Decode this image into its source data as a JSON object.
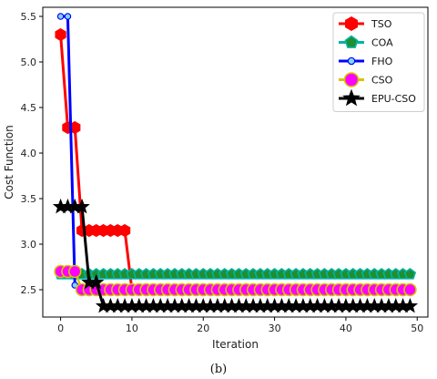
{
  "caption": "(b)",
  "chart_data": {
    "type": "line",
    "title": "",
    "xlabel": "Iteration",
    "ylabel": "Cost Function",
    "xlim": [
      -2.5,
      51.5
    ],
    "ylim": [
      2.2,
      5.6
    ],
    "xticks": [
      0,
      10,
      20,
      30,
      40,
      50
    ],
    "yticks": [
      2.5,
      3.0,
      3.5,
      4.0,
      4.5,
      5.0,
      5.5
    ],
    "grid": false,
    "legend_position": "top-right",
    "x": [
      0,
      1,
      2,
      3,
      4,
      5,
      6,
      7,
      8,
      9,
      10,
      11,
      12,
      13,
      14,
      15,
      16,
      17,
      18,
      19,
      20,
      21,
      22,
      23,
      24,
      25,
      26,
      27,
      28,
      29,
      30,
      31,
      32,
      33,
      34,
      35,
      36,
      37,
      38,
      39,
      40,
      41,
      42,
      43,
      44,
      45,
      46,
      47,
      48,
      49
    ],
    "series": [
      {
        "name": "TSO",
        "color": "#ff0000",
        "marker": "hexagon",
        "marker_color": "#ff0000",
        "marker_edge": "#ff0000",
        "values": [
          5.3,
          4.28,
          4.28,
          3.15,
          3.15,
          3.15,
          3.15,
          3.15,
          3.15,
          3.15,
          2.5,
          2.5,
          2.5,
          2.5,
          2.5,
          2.5,
          2.5,
          2.5,
          2.5,
          2.5,
          2.5,
          2.5,
          2.5,
          2.5,
          2.5,
          2.5,
          2.5,
          2.5,
          2.5,
          2.5,
          2.5,
          2.5,
          2.5,
          2.5,
          2.5,
          2.5,
          2.5,
          2.5,
          2.5,
          2.5,
          2.5,
          2.5,
          2.5,
          2.5,
          2.5,
          2.5,
          2.5,
          2.5,
          2.5,
          2.5
        ]
      },
      {
        "name": "COA",
        "color": "#00b3a4",
        "marker": "pentagon",
        "marker_color": "#1f8f2f",
        "marker_edge": "#00b3a4",
        "values": [
          2.67,
          2.67,
          2.67,
          2.67,
          2.67,
          2.67,
          2.67,
          2.67,
          2.67,
          2.67,
          2.67,
          2.67,
          2.67,
          2.67,
          2.67,
          2.67,
          2.67,
          2.67,
          2.67,
          2.67,
          2.67,
          2.67,
          2.67,
          2.67,
          2.67,
          2.67,
          2.67,
          2.67,
          2.67,
          2.67,
          2.67,
          2.67,
          2.67,
          2.67,
          2.67,
          2.67,
          2.67,
          2.67,
          2.67,
          2.67,
          2.67,
          2.67,
          2.67,
          2.67,
          2.67,
          2.67,
          2.67,
          2.67,
          2.67,
          2.67
        ]
      },
      {
        "name": "FHO",
        "color": "#0000ff",
        "marker": "circle",
        "marker_color": "#7fd6f5",
        "marker_edge": "#0000ff",
        "values": [
          5.5,
          5.5,
          2.55,
          2.5,
          2.5,
          2.5,
          2.5,
          2.5,
          2.5,
          2.5,
          2.5,
          2.5,
          2.5,
          2.5,
          2.5,
          2.5,
          2.5,
          2.5,
          2.5,
          2.5,
          2.5,
          2.5,
          2.5,
          2.5,
          2.5,
          2.5,
          2.5,
          2.5,
          2.5,
          2.5,
          2.5,
          2.5,
          2.5,
          2.5,
          2.5,
          2.5,
          2.5,
          2.5,
          2.5,
          2.5,
          2.5,
          2.5,
          2.5,
          2.5,
          2.5,
          2.5,
          2.5,
          2.5,
          2.5,
          2.5
        ]
      },
      {
        "name": "CSO",
        "color": "#d4c500",
        "marker": "circle",
        "marker_color": "#ff00ff",
        "marker_edge": "#d4c500",
        "values": [
          2.7,
          2.7,
          2.7,
          2.5,
          2.5,
          2.5,
          2.5,
          2.5,
          2.5,
          2.5,
          2.5,
          2.5,
          2.5,
          2.5,
          2.5,
          2.5,
          2.5,
          2.5,
          2.5,
          2.5,
          2.5,
          2.5,
          2.5,
          2.5,
          2.5,
          2.5,
          2.5,
          2.5,
          2.5,
          2.5,
          2.5,
          2.5,
          2.5,
          2.5,
          2.5,
          2.5,
          2.5,
          2.5,
          2.5,
          2.5,
          2.5,
          2.5,
          2.5,
          2.5,
          2.5,
          2.5,
          2.5,
          2.5,
          2.5,
          2.5
        ]
      },
      {
        "name": "EPU-CSO",
        "color": "#000000",
        "marker": "star",
        "marker_color": "#000000",
        "marker_edge": "#000000",
        "values": [
          3.41,
          3.41,
          3.41,
          3.41,
          2.58,
          2.58,
          2.32,
          2.32,
          2.32,
          2.32,
          2.32,
          2.32,
          2.32,
          2.32,
          2.32,
          2.32,
          2.32,
          2.32,
          2.32,
          2.32,
          2.32,
          2.32,
          2.32,
          2.32,
          2.32,
          2.32,
          2.32,
          2.32,
          2.32,
          2.32,
          2.32,
          2.32,
          2.32,
          2.32,
          2.32,
          2.32,
          2.32,
          2.32,
          2.32,
          2.32,
          2.32,
          2.32,
          2.32,
          2.32,
          2.32,
          2.32,
          2.32,
          2.32,
          2.32,
          2.32
        ]
      }
    ]
  }
}
